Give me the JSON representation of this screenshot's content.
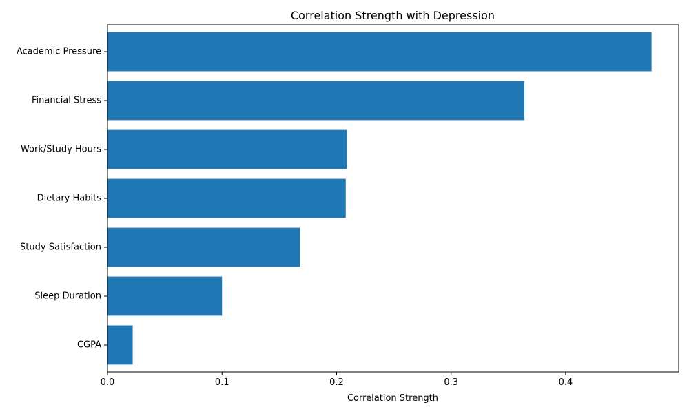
{
  "chart_data": {
    "type": "bar",
    "orientation": "horizontal",
    "title": "Correlation Strength with Depression",
    "xlabel": "Correlation Strength",
    "ylabel": "",
    "categories": [
      "Academic Pressure",
      "Financial Stress",
      "Work/Study Hours",
      "Dietary Habits",
      "Study Satisfaction",
      "Sleep Duration",
      "CGPA"
    ],
    "values": [
      0.475,
      0.364,
      0.209,
      0.208,
      0.168,
      0.1,
      0.022
    ],
    "xlim": [
      0,
      0.4987
    ],
    "xticks": [
      0.0,
      0.1,
      0.2,
      0.3,
      0.4
    ],
    "xtick_labels": [
      "0.0",
      "0.1",
      "0.2",
      "0.3",
      "0.4"
    ],
    "grid": false,
    "legend": "none",
    "bar_color": "#1f77b4"
  }
}
